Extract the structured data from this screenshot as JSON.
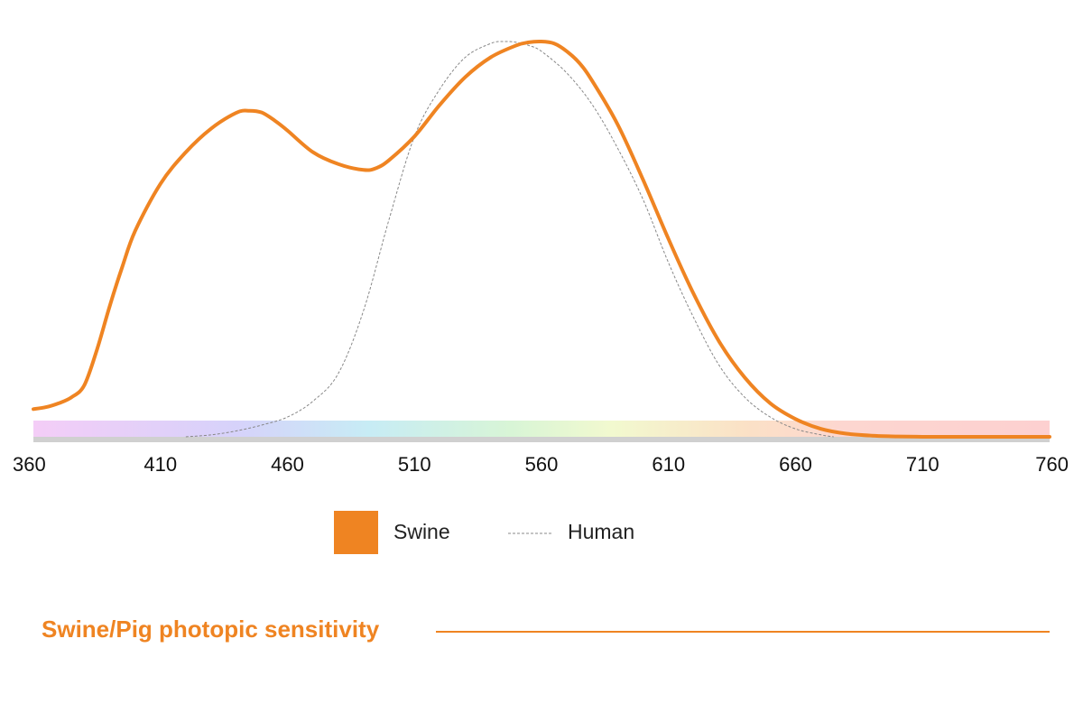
{
  "chart_data": {
    "type": "line",
    "title": "Swine/Pig photopic sensitivity",
    "xlim": [
      360,
      760
    ],
    "ylim": [
      0,
      1
    ],
    "x_ticks": [
      360,
      410,
      460,
      510,
      560,
      610,
      660,
      710,
      760
    ],
    "grid": false,
    "legend_position": "bottom-center",
    "series": [
      {
        "name": "Swine",
        "color": "#ef8422",
        "style": "solid",
        "x": [
          360,
          365,
          370,
          375,
          380,
          385,
          390,
          395,
          400,
          410,
          420,
          430,
          440,
          445,
          450,
          455,
          460,
          470,
          480,
          490,
          495,
          500,
          510,
          520,
          530,
          540,
          550,
          555,
          560,
          565,
          570,
          575,
          580,
          590,
          600,
          610,
          620,
          630,
          640,
          650,
          660,
          670,
          680,
          690,
          700,
          710,
          720,
          740,
          760
        ],
        "y": [
          0.07,
          0.075,
          0.085,
          0.1,
          0.13,
          0.22,
          0.33,
          0.43,
          0.52,
          0.64,
          0.72,
          0.78,
          0.82,
          0.825,
          0.82,
          0.8,
          0.775,
          0.72,
          0.69,
          0.675,
          0.68,
          0.7,
          0.76,
          0.84,
          0.91,
          0.96,
          0.99,
          0.998,
          1.0,
          0.995,
          0.975,
          0.945,
          0.9,
          0.79,
          0.65,
          0.5,
          0.36,
          0.24,
          0.15,
          0.085,
          0.045,
          0.02,
          0.008,
          0.003,
          0.001,
          0.0,
          0.0,
          0.0,
          0.0
        ]
      },
      {
        "name": "Human",
        "color": "#888888",
        "style": "dashed",
        "x": [
          420,
          430,
          440,
          450,
          460,
          470,
          480,
          490,
          500,
          510,
          520,
          530,
          540,
          545,
          550,
          555,
          560,
          570,
          580,
          590,
          600,
          610,
          620,
          630,
          640,
          650,
          660,
          670,
          675
        ],
        "y": [
          0.0,
          0.005,
          0.015,
          0.03,
          0.05,
          0.09,
          0.16,
          0.32,
          0.55,
          0.76,
          0.88,
          0.96,
          0.995,
          1.0,
          0.998,
          0.99,
          0.975,
          0.92,
          0.84,
          0.73,
          0.6,
          0.44,
          0.3,
          0.18,
          0.1,
          0.05,
          0.02,
          0.005,
          0.0
        ]
      }
    ]
  }
}
